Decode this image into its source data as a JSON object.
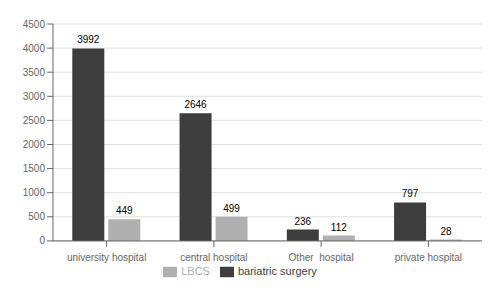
{
  "chart_data": {
    "type": "bar",
    "categories": [
      "university hospital",
      "central hospital",
      "Other  hospital",
      "private hospital"
    ],
    "series": [
      {
        "name": "bariatric surgery",
        "color": "#3d3d3d",
        "values": [
          3992,
          2646,
          236,
          797
        ]
      },
      {
        "name": "LBCS",
        "color": "#b0b0b0",
        "values": [
          449,
          499,
          112,
          28
        ]
      }
    ],
    "ylim": [
      0,
      4500
    ],
    "yticks": [
      0,
      500,
      1000,
      1500,
      2000,
      2500,
      3000,
      3500,
      4000,
      4500
    ],
    "grid": true,
    "data_labels": true,
    "legend": "bottom"
  }
}
